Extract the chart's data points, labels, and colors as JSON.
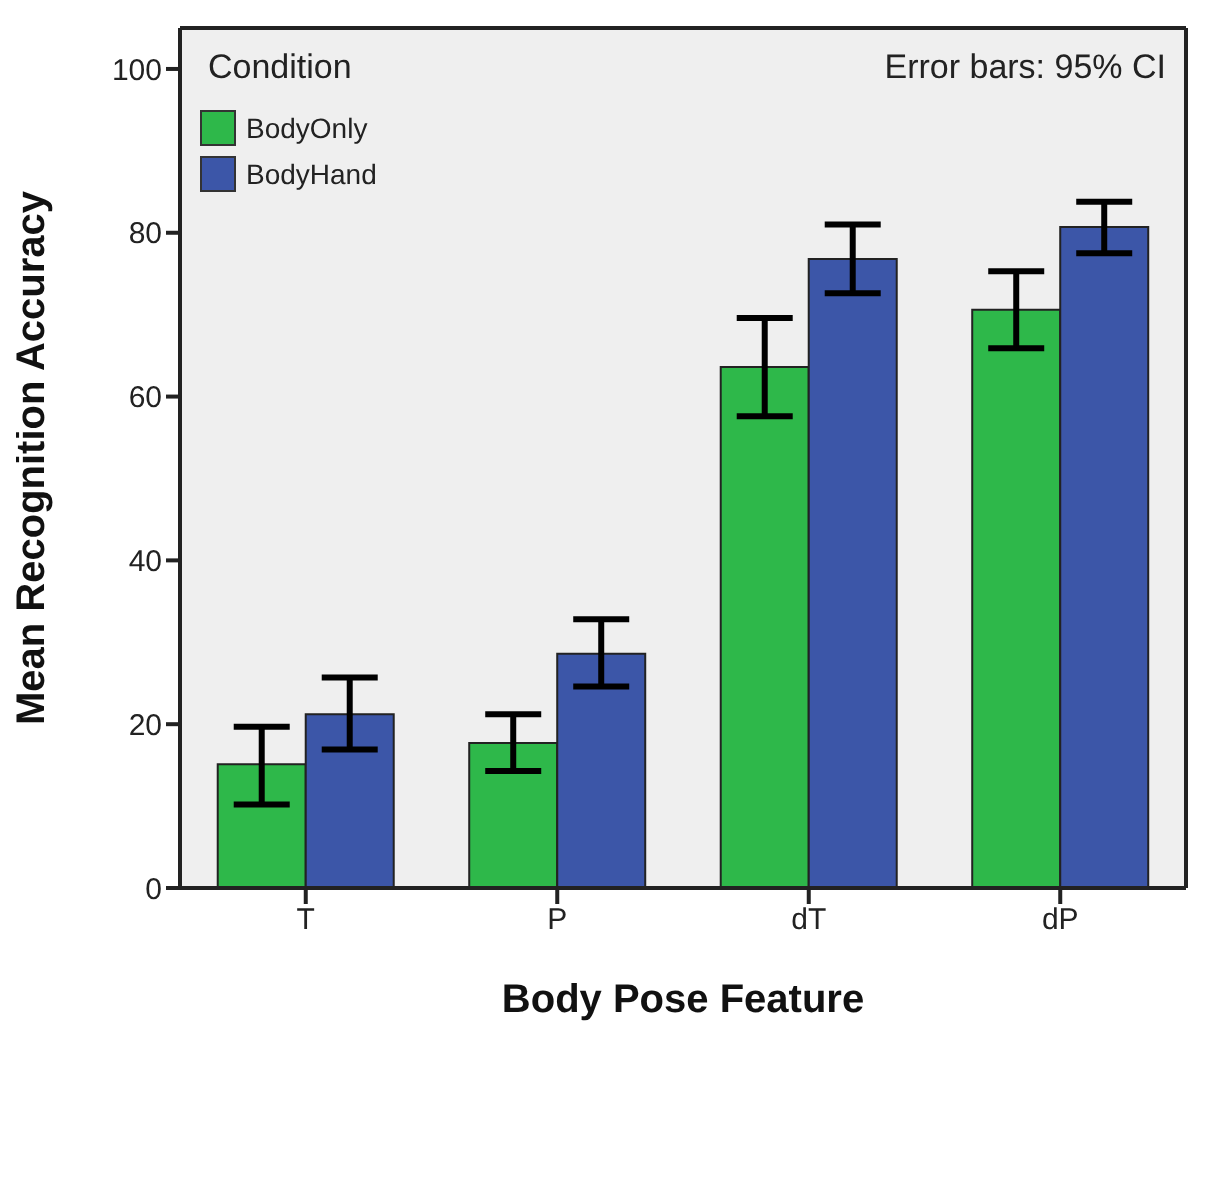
{
  "chart_data": {
    "type": "bar",
    "xlabel": "Body Pose Feature",
    "ylabel": "Mean Recognition Accuracy",
    "legend_title": "Condition",
    "annotations": [
      "Error bars: 95% CI"
    ],
    "categories": [
      "T",
      "P",
      "dT",
      "dP"
    ],
    "series": [
      {
        "name": "BodyOnly",
        "color": "#2eb84a",
        "values": [
          15.1,
          17.7,
          63.6,
          70.6
        ],
        "errors": [
          [
            10.2,
            19.7
          ],
          [
            14.3,
            21.2
          ],
          [
            57.6,
            69.6
          ],
          [
            65.9,
            75.3
          ]
        ]
      },
      {
        "name": "BodyHand",
        "color": "#3c56a8",
        "values": [
          21.2,
          28.6,
          76.8,
          80.7
        ],
        "errors": [
          [
            16.9,
            25.7
          ],
          [
            24.6,
            32.8
          ],
          [
            72.6,
            81.0
          ],
          [
            77.5,
            83.8
          ]
        ]
      }
    ],
    "ylim": [
      0,
      105
    ],
    "yticks": [
      0,
      20,
      40,
      60,
      80,
      100
    ],
    "grid": false,
    "legend": "top left"
  }
}
